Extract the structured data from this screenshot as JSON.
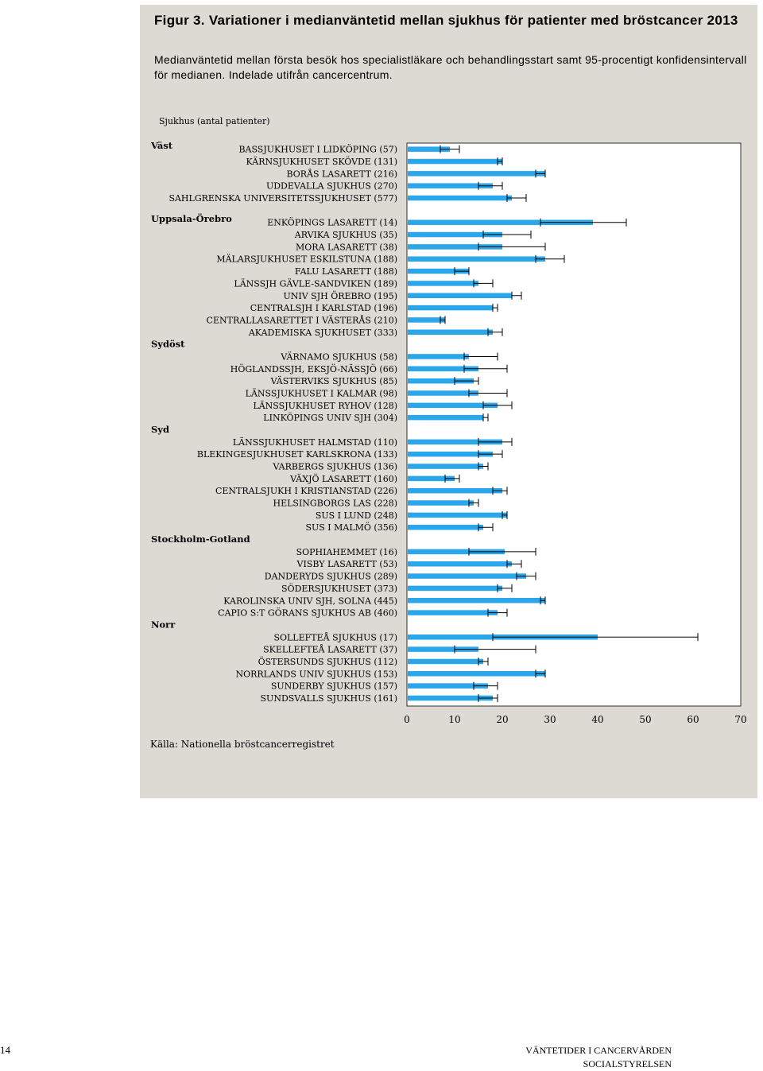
{
  "figure": {
    "title": "Figur 3. Variationer i medianväntetid mellan sjukhus för patienter med bröstcancer 2013",
    "description": "Medianväntetid mellan första besök hos specialistläkare och behandlingsstart samt 95-procentigt konfidensintervall för medianen. Indelade utifrån cancercentrum.",
    "y_axis_title": "Sjukhus (antal patienter)",
    "source": "Källa: Nationella bröstcancerregistret"
  },
  "footer": {
    "page_number": "14",
    "line1": "VÄNTETIDER I CANCERVÅRDEN",
    "line2": "SOCIALSTYRELSEN"
  },
  "colors": {
    "bar": "#2aa7ea",
    "panel": "#dcdad2",
    "plot_bg": "#ffffff",
    "error_bar": "#000000"
  },
  "chart_data": {
    "type": "bar",
    "orientation": "horizontal",
    "error_bars": "95% confidence interval",
    "xlim": [
      0,
      70
    ],
    "xticks": [
      0,
      10,
      20,
      30,
      40,
      50,
      60,
      70
    ],
    "grid": false,
    "groups": [
      {
        "name": "Väst",
        "items": [
          {
            "label": "BASSJUKHUSET I LIDKÖPING (57)",
            "value": 9,
            "ci": [
              7,
              11
            ]
          },
          {
            "label": "KÄRNSJUKHUSET SKÖVDE (131)",
            "value": 20,
            "ci": [
              19,
              20
            ]
          },
          {
            "label": "BORÅS LASARETT (216)",
            "value": 29,
            "ci": [
              27,
              29
            ]
          },
          {
            "label": "UDDEVALLA SJUKHUS (270)",
            "value": 18,
            "ci": [
              15,
              20
            ]
          },
          {
            "label": "SAHLGRENSKA UNIVERSITETSSJUKHUSET (577)",
            "value": 22,
            "ci": [
              21,
              25
            ]
          }
        ]
      },
      {
        "name": "Uppsala-Örebro",
        "items": [
          {
            "label": "ENKÖPINGS LASARETT (14)",
            "value": 39,
            "ci": [
              28,
              46
            ]
          },
          {
            "label": "ARVIKA SJUKHUS (35)",
            "value": 20,
            "ci": [
              16,
              26
            ]
          },
          {
            "label": "MORA LASARETT (38)",
            "value": 20,
            "ci": [
              15,
              29
            ]
          },
          {
            "label": "MÄLARSJUKHUSET ESKILSTUNA (188)",
            "value": 29,
            "ci": [
              27,
              33
            ]
          },
          {
            "label": "FALU LASARETT (188)",
            "value": 13,
            "ci": [
              10,
              13
            ]
          },
          {
            "label": "LÄNSSJH GÄVLE-SANDVIKEN (189)",
            "value": 15,
            "ci": [
              14,
              18
            ]
          },
          {
            "label": "UNIV SJH ÖREBRO (195)",
            "value": 22,
            "ci": [
              22,
              24
            ]
          },
          {
            "label": "CENTRALSJH I KARLSTAD (196)",
            "value": 18,
            "ci": [
              18,
              19
            ]
          },
          {
            "label": "CENTRALLASARETTET I VÄSTERÅS (210)",
            "value": 8,
            "ci": [
              7,
              8
            ]
          },
          {
            "label": "AKADEMISKA SJUKHUSET (333)",
            "value": 18,
            "ci": [
              17,
              20
            ]
          }
        ]
      },
      {
        "name": "Sydöst",
        "items": [
          {
            "label": "VÄRNAMO SJUKHUS (58)",
            "value": 13,
            "ci": [
              12,
              19
            ]
          },
          {
            "label": "HÖGLANDSSJH, EKSJÖ-NÄSSJÖ (66)",
            "value": 15,
            "ci": [
              12,
              21
            ]
          },
          {
            "label": "VÄSTERVIKS SJUKHUS (85)",
            "value": 14,
            "ci": [
              10,
              15
            ]
          },
          {
            "label": "LÄNSSJUKHUSET I KALMAR (98)",
            "value": 15,
            "ci": [
              13,
              21
            ]
          },
          {
            "label": "LÄNSSJUKHUSET RYHOV (128)",
            "value": 19,
            "ci": [
              16,
              22
            ]
          },
          {
            "label": "LINKÖPINGS UNIV SJH (304)",
            "value": 16,
            "ci": [
              16,
              17
            ]
          }
        ]
      },
      {
        "name": "Syd",
        "items": [
          {
            "label": "LÄNSSJUKHUSET HALMSTAD (110)",
            "value": 20,
            "ci": [
              15,
              22
            ]
          },
          {
            "label": "BLEKINGESJUKHUSET KARLSKRONA (133)",
            "value": 18,
            "ci": [
              15,
              20
            ]
          },
          {
            "label": "VARBERGS SJUKHUS (136)",
            "value": 16,
            "ci": [
              15,
              17
            ]
          },
          {
            "label": "VÄXJÖ LASARETT (160)",
            "value": 10,
            "ci": [
              8,
              11
            ]
          },
          {
            "label": "CENTRALSJUKH I KRISTIANSTAD (226)",
            "value": 20,
            "ci": [
              18,
              21
            ]
          },
          {
            "label": "HELSINGBORGS LAS (228)",
            "value": 14,
            "ci": [
              13,
              15
            ]
          },
          {
            "label": "SUS I LUND (248)",
            "value": 21,
            "ci": [
              20,
              21
            ]
          },
          {
            "label": "SUS I MALMÖ (356)",
            "value": 16,
            "ci": [
              15,
              18
            ]
          }
        ]
      },
      {
        "name": "Stockholm-Gotland",
        "items": [
          {
            "label": "SOPHIAHEMMET (16)",
            "value": 20.5,
            "ci": [
              13,
              27
            ]
          },
          {
            "label": "VISBY LASARETT (53)",
            "value": 22,
            "ci": [
              21,
              24
            ]
          },
          {
            "label": "DANDERYDS SJUKHUS (289)",
            "value": 25,
            "ci": [
              23,
              27
            ]
          },
          {
            "label": "SÖDERSJUKHUSET (373)",
            "value": 20,
            "ci": [
              19,
              22
            ]
          },
          {
            "label": "KAROLINSKA UNIV SJH, SOLNA (445)",
            "value": 29,
            "ci": [
              28,
              29
            ]
          },
          {
            "label": "CAPIO S:T GÖRANS SJUKHUS AB (460)",
            "value": 19,
            "ci": [
              17,
              21
            ]
          }
        ]
      },
      {
        "name": "Norr",
        "items": [
          {
            "label": "SOLLEFTEÅ SJUKHUS (17)",
            "value": 40,
            "ci": [
              18,
              61
            ]
          },
          {
            "label": "SKELLEFTEÅ LASARETT (37)",
            "value": 15,
            "ci": [
              10,
              27
            ]
          },
          {
            "label": "ÖSTERSUNDS SJUKHUS (112)",
            "value": 16,
            "ci": [
              15,
              17
            ]
          },
          {
            "label": "NORRLANDS UNIV SJUKHUS (153)",
            "value": 29,
            "ci": [
              27,
              29
            ]
          },
          {
            "label": "SUNDERBY SJUKHUS (157)",
            "value": 17,
            "ci": [
              14,
              19
            ]
          },
          {
            "label": "SUNDSVALLS SJUKHUS (161)",
            "value": 18,
            "ci": [
              15,
              19
            ]
          }
        ]
      }
    ]
  }
}
